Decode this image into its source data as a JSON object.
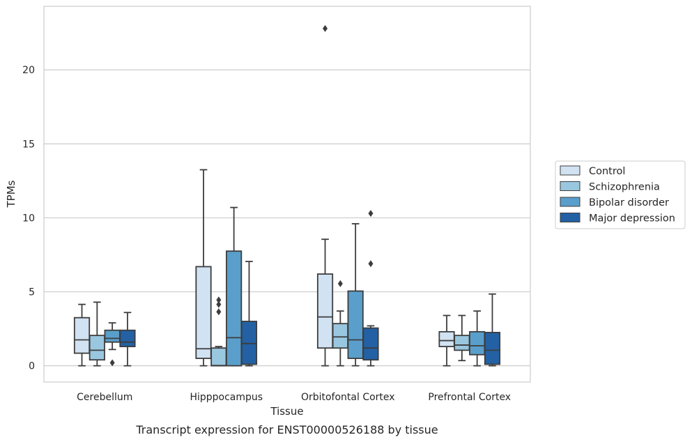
{
  "chart_data": {
    "type": "boxplot",
    "xlabel": "Tissue",
    "ylabel": "TPMs",
    "caption": "Transcript expression for ENST00000526188 by tissue",
    "categories": [
      "Cerebellum",
      "Hipppocampus",
      "Orbitofontal Cortex",
      "Prefrontal Cortex"
    ],
    "ylim": [
      -1.1,
      24.3
    ],
    "yticks": [
      0,
      5,
      10,
      15,
      20
    ],
    "grid": "horizontal",
    "legend_position": "right",
    "series": [
      {
        "name": "Control",
        "color": "#d1e2f2",
        "boxes": [
          {
            "whislo": 0.0,
            "q1": 0.85,
            "med": 1.75,
            "q3": 3.25,
            "whishi": 4.15,
            "fliers": []
          },
          {
            "whislo": 0.0,
            "q1": 0.5,
            "med": 1.15,
            "q3": 6.7,
            "whishi": 13.25,
            "fliers": []
          },
          {
            "whislo": 0.0,
            "q1": 1.2,
            "med": 3.3,
            "q3": 6.2,
            "whishi": 8.55,
            "fliers": [
              22.8
            ]
          },
          {
            "whislo": 0.0,
            "q1": 1.3,
            "med": 1.7,
            "q3": 2.3,
            "whishi": 3.4,
            "fliers": []
          }
        ]
      },
      {
        "name": "Schizophrenia",
        "color": "#9ac7e0",
        "boxes": [
          {
            "whislo": 0.0,
            "q1": 0.4,
            "med": 1.05,
            "q3": 2.05,
            "whishi": 4.3,
            "fliers": []
          },
          {
            "whislo": 0.0,
            "q1": 0.0,
            "med": 0.02,
            "q3": 1.2,
            "whishi": 1.3,
            "fliers": [
              3.65,
              4.15,
              4.45
            ]
          },
          {
            "whislo": 0.0,
            "q1": 1.2,
            "med": 1.95,
            "q3": 2.85,
            "whishi": 3.7,
            "fliers": [
              5.55
            ]
          },
          {
            "whislo": 0.35,
            "q1": 1.05,
            "med": 1.4,
            "q3": 2.05,
            "whishi": 3.4,
            "fliers": []
          }
        ]
      },
      {
        "name": "Bipolar disorder",
        "color": "#5a9fcb",
        "boxes": [
          {
            "whislo": 1.1,
            "q1": 1.6,
            "med": 1.85,
            "q3": 2.4,
            "whishi": 2.9,
            "fliers": [
              0.2
            ]
          },
          {
            "whislo": 0.0,
            "q1": 0.0,
            "med": 1.9,
            "q3": 7.75,
            "whishi": 10.7,
            "fliers": []
          },
          {
            "whislo": 0.0,
            "q1": 0.5,
            "med": 1.75,
            "q3": 5.05,
            "whishi": 9.6,
            "fliers": []
          },
          {
            "whislo": 0.0,
            "q1": 0.75,
            "med": 1.35,
            "q3": 2.3,
            "whishi": 3.7,
            "fliers": []
          }
        ]
      },
      {
        "name": "Major depression",
        "color": "#2361a4",
        "boxes": [
          {
            "whislo": 0.0,
            "q1": 1.3,
            "med": 1.6,
            "q3": 2.4,
            "whishi": 3.6,
            "fliers": []
          },
          {
            "whislo": 0.0,
            "q1": 0.1,
            "med": 1.5,
            "q3": 3.0,
            "whishi": 7.05,
            "fliers": []
          },
          {
            "whislo": 0.0,
            "q1": 0.4,
            "med": 1.2,
            "q3": 2.55,
            "whishi": 2.7,
            "fliers": [
              6.9,
              10.3
            ]
          },
          {
            "whislo": 0.0,
            "q1": 0.1,
            "med": 1.05,
            "q3": 2.25,
            "whishi": 4.85,
            "fliers": []
          }
        ]
      }
    ]
  }
}
